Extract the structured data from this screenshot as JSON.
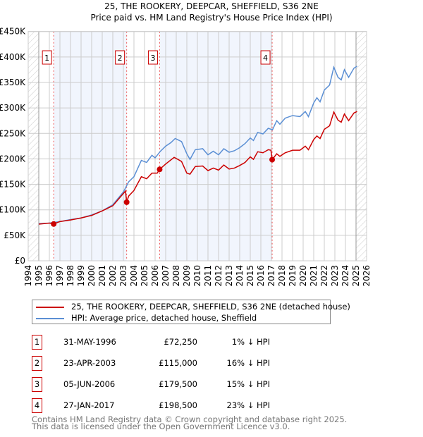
{
  "chart_data": {
    "type": "line",
    "title": "25, THE ROOKERY, DEEPCAR, SHEFFIELD, S36 2NE",
    "subtitle": "Price paid vs. HM Land Registry's House Price Index (HPI)",
    "xlim": [
      1994,
      2026
    ],
    "ylim": [
      0,
      450000
    ],
    "yticks": [
      {
        "v": 0,
        "label": "£0"
      },
      {
        "v": 50000,
        "label": "£50K"
      },
      {
        "v": 100000,
        "label": "£100K"
      },
      {
        "v": 150000,
        "label": "£150K"
      },
      {
        "v": 200000,
        "label": "£200K"
      },
      {
        "v": 250000,
        "label": "£250K"
      },
      {
        "v": 300000,
        "label": "£300K"
      },
      {
        "v": 350000,
        "label": "£350K"
      },
      {
        "v": 400000,
        "label": "£400K"
      },
      {
        "v": 450000,
        "label": "£450K"
      }
    ],
    "xticks": [
      "1994",
      "1995",
      "1996",
      "1997",
      "1998",
      "1999",
      "2000",
      "2001",
      "2002",
      "2003",
      "2004",
      "2005",
      "2006",
      "2007",
      "2008",
      "2009",
      "2010",
      "2011",
      "2012",
      "2013",
      "2014",
      "2015",
      "2016",
      "2017",
      "2018",
      "2019",
      "2020",
      "2021",
      "2022",
      "2023",
      "2024",
      "2025",
      "2026"
    ],
    "grid": true,
    "series": [
      {
        "name": "25, THE ROOKERY, DEEPCAR, SHEFFIELD, S36 2NE (detached house)",
        "color": "#cc0000",
        "x": [
          1995,
          1996,
          1996.41,
          1997,
          1998,
          1999,
          2000,
          2001,
          2002,
          2003.2,
          2003.31,
          2003.5,
          2004,
          2004.7,
          2005.2,
          2005.7,
          2006.2,
          2006.43,
          2007,
          2007.8,
          2008.5,
          2009,
          2009.3,
          2009.8,
          2010.5,
          2011,
          2011.5,
          2012,
          2012.5,
          2013,
          2013.5,
          2014,
          2014.5,
          2015,
          2015.3,
          2015.7,
          2016.2,
          2016.7,
          2016.95,
          2017.07,
          2017.5,
          2017.8,
          2018.3,
          2019,
          2019.7,
          2020.2,
          2020.5,
          2021,
          2021.3,
          2021.6,
          2022,
          2022.5,
          2022.9,
          2023.3,
          2023.6,
          2023.9,
          2024.3,
          2024.8,
          2025.1
        ],
        "y": [
          72000,
          74000,
          72250,
          77000,
          80000,
          84000,
          89000,
          98000,
          108000,
          137000,
          115000,
          127000,
          138000,
          165000,
          161000,
          172000,
          172000,
          179500,
          190000,
          203000,
          195000,
          172000,
          170000,
          185000,
          186000,
          177000,
          182000,
          178000,
          188000,
          180000,
          182000,
          187000,
          193000,
          204000,
          199000,
          214000,
          212000,
          218000,
          217000,
          198500,
          210000,
          205000,
          212000,
          217000,
          217000,
          225000,
          218000,
          238000,
          245000,
          240000,
          258000,
          265000,
          292000,
          276000,
          272000,
          288000,
          275000,
          290000,
          293000
        ]
      },
      {
        "name": "HPI: Average price, detached house, Sheffield",
        "color": "#5b8fd4",
        "x": [
          1995,
          1996,
          1997,
          1998,
          1999,
          2000,
          2001,
          2002,
          2003,
          2003.5,
          2004,
          2004.7,
          2005.2,
          2005.7,
          2006,
          2006.5,
          2007,
          2007.5,
          2007.9,
          2008.5,
          2009,
          2009.3,
          2009.8,
          2010.5,
          2011,
          2011.5,
          2012,
          2012.5,
          2013,
          2013.5,
          2014,
          2014.5,
          2015,
          2015.3,
          2015.7,
          2016.2,
          2016.7,
          2017.1,
          2017.5,
          2017.8,
          2018.3,
          2019,
          2019.7,
          2020.2,
          2020.5,
          2021,
          2021.3,
          2021.6,
          2022,
          2022.5,
          2022.9,
          2023.3,
          2023.6,
          2023.9,
          2024.3,
          2024.8,
          2025.1
        ],
        "y": [
          73000,
          74000,
          77000,
          81000,
          84000,
          90000,
          98000,
          110000,
          135000,
          155000,
          165000,
          197000,
          193000,
          207000,
          202000,
          215000,
          225000,
          232000,
          240000,
          234000,
          210000,
          199000,
          218000,
          220000,
          208000,
          215000,
          208000,
          220000,
          213000,
          216000,
          222000,
          230000,
          241000,
          236000,
          252000,
          249000,
          260000,
          257000,
          275000,
          268000,
          280000,
          285000,
          283000,
          293000,
          283000,
          310000,
          320000,
          312000,
          335000,
          345000,
          380000,
          360000,
          355000,
          375000,
          360000,
          378000,
          382000
        ]
      }
    ],
    "sales": [
      {
        "n": "1",
        "x": 1996.41,
        "y": 72250
      },
      {
        "n": "2",
        "x": 2003.31,
        "y": 115000
      },
      {
        "n": "3",
        "x": 2006.43,
        "y": 179500
      },
      {
        "n": "4",
        "x": 2017.07,
        "y": 198500
      }
    ],
    "shaded": [
      [
        1996.41,
        2003.31
      ],
      [
        2006.43,
        2017.07
      ]
    ],
    "hatched": [
      [
        1994,
        1995
      ],
      [
        2025,
        2026
      ]
    ]
  },
  "legend": {
    "red": "25, THE ROOKERY, DEEPCAR, SHEFFIELD, S36 2NE (detached house)",
    "blue": "HPI: Average price, detached house, Sheffield"
  },
  "table": [
    {
      "n": "1",
      "date": "31-MAY-1996",
      "price": "£72,250",
      "hpi": "1% ↓ HPI"
    },
    {
      "n": "2",
      "date": "23-APR-2003",
      "price": "£115,000",
      "hpi": "16% ↓ HPI"
    },
    {
      "n": "3",
      "date": "05-JUN-2006",
      "price": "£179,500",
      "hpi": "15% ↓ HPI"
    },
    {
      "n": "4",
      "date": "27-JAN-2017",
      "price": "£198,500",
      "hpi": "23% ↓ HPI"
    }
  ],
  "footer": {
    "line1": "Contains HM Land Registry data © Crown copyright and database right 2025.",
    "line2": "This data is licensed under the Open Government Licence v3.0."
  }
}
